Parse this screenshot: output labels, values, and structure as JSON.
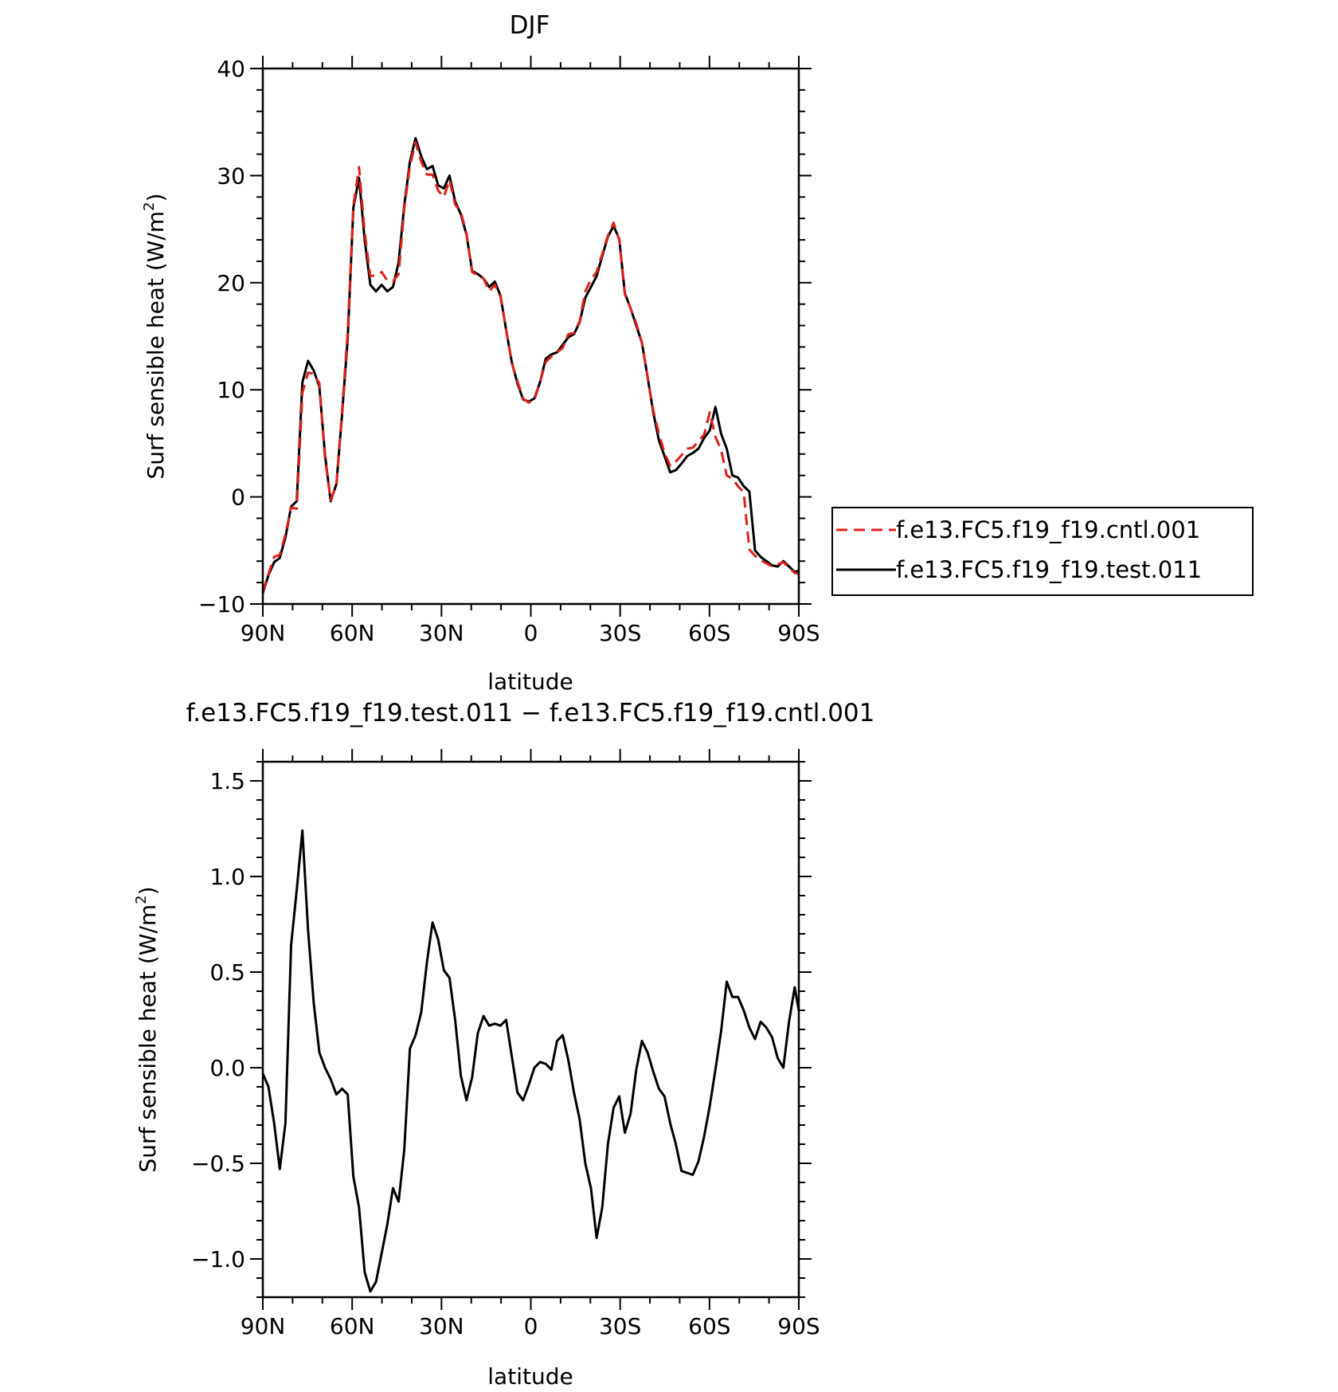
{
  "chart_data": [
    {
      "type": "line",
      "title": "DJF",
      "xlabel": "latitude",
      "ylabel": "Surf sensible heat (W/m",
      "ylabel_sup": "2",
      "ylabel_close": ")",
      "xlim": [
        90,
        -90
      ],
      "ylim": [
        -10,
        40
      ],
      "x_ticks": [
        90,
        60,
        30,
        0,
        -30,
        -60,
        -90
      ],
      "x_tick_labels": [
        "90N",
        "60N",
        "30N",
        "0",
        "30S",
        "60S",
        "90S"
      ],
      "y_ticks": [
        -10,
        0,
        10,
        20,
        30,
        40
      ],
      "y_tick_labels": [
        "−10",
        "0",
        "10",
        "20",
        "30",
        "40"
      ],
      "legend": "right",
      "series": [
        {
          "name": "f.e13.FC5.f19_f19.cntl.001",
          "color": "#e0201b",
          "dash": "dashed",
          "x": [
            90,
            88.1,
            86.2,
            84.3,
            82.4,
            80.5,
            78.6,
            76.7,
            74.8,
            72.9,
            71.0,
            69.1,
            67.2,
            65.3,
            63.4,
            61.5,
            59.6,
            57.7,
            55.8,
            53.9,
            52.0,
            50.1,
            48.2,
            46.3,
            44.4,
            42.5,
            40.6,
            38.7,
            36.8,
            34.9,
            33.0,
            31.1,
            29.2,
            27.3,
            25.4,
            23.5,
            21.6,
            19.7,
            17.8,
            15.9,
            14.0,
            12.1,
            10.2,
            8.3,
            6.4,
            4.5,
            2.6,
            0.7,
            -1.2,
            -3.1,
            -5.0,
            -6.9,
            -8.8,
            -10.7,
            -12.6,
            -14.5,
            -16.4,
            -18.3,
            -20.2,
            -22.1,
            -24.0,
            -25.9,
            -27.8,
            -29.7,
            -31.6,
            -33.5,
            -35.4,
            -37.3,
            -39.2,
            -41.1,
            -43.0,
            -44.9,
            -46.8,
            -48.7,
            -50.6,
            -52.5,
            -54.4,
            -56.3,
            -58.2,
            -60.1,
            -62.0,
            -63.9,
            -65.8,
            -67.7,
            -69.6,
            -71.5,
            -73.4,
            -75.3,
            -77.2,
            -79.1,
            -81.0,
            -82.9,
            -84.8,
            -86.7,
            -88.6,
            -90
          ],
          "y": [
            -8.9,
            -7.2,
            -5.6,
            -5.4,
            -3.5,
            -1.0,
            -1.1,
            9.7,
            11.6,
            11.5,
            10.6,
            3.6,
            -0.3,
            1.1,
            8.0,
            15.4,
            27.2,
            30.8,
            24.7,
            20.6,
            20.7,
            21.0,
            20.2,
            20.1,
            20.8,
            26.9,
            30.9,
            33.1,
            31.3,
            30.1,
            30.1,
            28.6,
            28.0,
            29.6,
            27.3,
            26.6,
            24.6,
            21.0,
            20.7,
            20.4,
            19.2,
            19.8,
            18.7,
            15.6,
            12.5,
            10.8,
            9.2,
            8.8,
            9.1,
            10.7,
            12.6,
            13.1,
            13.5,
            13.9,
            15.2,
            15.3,
            16.4,
            19.2,
            20.3,
            21.0,
            22.7,
            24.4,
            25.6,
            24.0,
            18.9,
            17.6,
            16.2,
            14.4,
            11.2,
            8.1,
            5.9,
            4.1,
            2.9,
            3.3,
            3.9,
            4.5,
            4.6,
            5.2,
            5.8,
            7.9,
            5.6,
            4.4,
            2.0,
            1.7,
            1.0,
            0.4,
            -4.9,
            -5.5,
            -5.9,
            -6.2,
            -6.5,
            -6.3,
            -6.1,
            -6.6,
            -7.1,
            -7.2
          ]
        },
        {
          "name": "f.e13.FC5.f19_f19.test.011",
          "color": "#000000",
          "dash": "solid",
          "x": [
            90,
            88.1,
            86.2,
            84.3,
            82.4,
            80.5,
            78.6,
            76.7,
            74.8,
            72.9,
            71.0,
            69.1,
            67.2,
            65.3,
            63.4,
            61.5,
            59.6,
            57.7,
            55.8,
            53.9,
            52.0,
            50.1,
            48.2,
            46.3,
            44.4,
            42.5,
            40.6,
            38.7,
            36.8,
            34.9,
            33.0,
            31.1,
            29.2,
            27.3,
            25.4,
            23.5,
            21.6,
            19.7,
            17.8,
            15.9,
            14.0,
            12.1,
            10.2,
            8.3,
            6.4,
            4.5,
            2.6,
            0.7,
            -1.2,
            -3.1,
            -5.0,
            -6.9,
            -8.8,
            -10.7,
            -12.6,
            -14.5,
            -16.4,
            -18.3,
            -20.2,
            -22.1,
            -24.0,
            -25.9,
            -27.8,
            -29.7,
            -31.6,
            -33.5,
            -35.4,
            -37.3,
            -39.2,
            -41.1,
            -43.0,
            -44.9,
            -46.8,
            -48.7,
            -50.6,
            -52.5,
            -54.4,
            -56.3,
            -58.2,
            -60.1,
            -62.0,
            -63.9,
            -65.8,
            -67.7,
            -69.6,
            -71.5,
            -73.4,
            -75.3,
            -77.2,
            -79.1,
            -81.0,
            -82.9,
            -84.8,
            -86.7,
            -88.6,
            -90
          ],
          "y": [
            -9.0,
            -7.3,
            -6.1,
            -5.7,
            -3.8,
            -0.9,
            -0.4,
            10.7,
            12.7,
            11.8,
            10.3,
            3.9,
            -0.4,
            1.2,
            7.7,
            14.8,
            27.0,
            29.8,
            24.0,
            19.8,
            19.2,
            19.8,
            19.2,
            19.6,
            21.9,
            27.2,
            31.3,
            33.5,
            31.8,
            30.6,
            30.9,
            29.1,
            28.8,
            30.0,
            27.6,
            26.4,
            24.5,
            21.1,
            20.8,
            20.4,
            19.6,
            20.1,
            18.8,
            15.6,
            12.6,
            10.6,
            9.1,
            8.9,
            9.2,
            10.7,
            12.9,
            13.3,
            13.5,
            14.2,
            14.9,
            15.2,
            16.3,
            18.6,
            19.6,
            20.6,
            22.5,
            24.3,
            25.3,
            24.1,
            19.0,
            17.6,
            16.0,
            14.4,
            11.2,
            7.9,
            5.3,
            3.8,
            2.3,
            2.5,
            3.1,
            3.8,
            4.1,
            4.5,
            5.5,
            6.2,
            8.4,
            5.9,
            4.5,
            2.0,
            1.8,
            1.0,
            0.5,
            -5.0,
            -5.6,
            -6.0,
            -6.4,
            -6.5,
            -6.0,
            -6.5,
            -7.0,
            -6.9
          ]
        }
      ]
    },
    {
      "type": "line",
      "title": "f.e13.FC5.f19_f19.test.011 − f.e13.FC5.f19_f19.cntl.001",
      "xlabel": "latitude",
      "ylabel": "Surf sensible heat (W/m",
      "ylabel_sup": "2",
      "ylabel_close": ")",
      "xlim": [
        90,
        -90
      ],
      "ylim": [
        -1.2,
        1.6
      ],
      "x_ticks": [
        90,
        60,
        30,
        0,
        -30,
        -60,
        -90
      ],
      "x_tick_labels": [
        "90N",
        "60N",
        "30N",
        "0",
        "30S",
        "60S",
        "90S"
      ],
      "y_ticks": [
        -1.0,
        -0.5,
        0.0,
        0.5,
        1.0,
        1.5
      ],
      "y_tick_labels": [
        "−1.0",
        "−0.5",
        "0.0",
        "0.5",
        "1.0",
        "1.5"
      ],
      "series": [
        {
          "color": "#000000",
          "dash": "solid",
          "x": [
            90,
            88.1,
            86.2,
            84.3,
            82.4,
            80.5,
            78.6,
            76.7,
            74.8,
            72.9,
            71.0,
            69.1,
            67.2,
            65.3,
            63.4,
            61.5,
            59.6,
            57.7,
            55.8,
            53.9,
            52.0,
            50.1,
            48.2,
            46.3,
            44.4,
            42.5,
            40.6,
            38.7,
            36.8,
            34.9,
            33.0,
            31.1,
            29.2,
            27.3,
            25.4,
            23.5,
            21.6,
            19.7,
            17.8,
            15.9,
            14.0,
            12.1,
            10.2,
            8.3,
            6.4,
            4.5,
            2.6,
            0.7,
            -1.2,
            -3.1,
            -5.0,
            -6.9,
            -8.8,
            -10.7,
            -12.6,
            -14.5,
            -16.4,
            -18.3,
            -20.2,
            -22.1,
            -24.0,
            -25.9,
            -27.8,
            -29.7,
            -31.6,
            -33.5,
            -35.4,
            -37.3,
            -39.2,
            -41.1,
            -43.0,
            -44.9,
            -46.8,
            -48.7,
            -50.6,
            -52.5,
            -54.4,
            -56.3,
            -58.2,
            -60.1,
            -62.0,
            -63.9,
            -65.8,
            -67.7,
            -69.6,
            -71.5,
            -73.4,
            -75.3,
            -77.2,
            -79.1,
            -81.0,
            -82.9,
            -84.8,
            -86.7,
            -88.6,
            -90
          ],
          "y": [
            -0.03,
            -0.1,
            -0.29,
            -0.53,
            -0.29,
            0.64,
            0.93,
            1.24,
            0.72,
            0.34,
            0.08,
            0.0,
            -0.06,
            -0.14,
            -0.11,
            -0.14,
            -0.57,
            -0.73,
            -1.07,
            -1.17,
            -1.12,
            -0.97,
            -0.82,
            -0.63,
            -0.7,
            -0.43,
            0.1,
            0.17,
            0.29,
            0.55,
            0.76,
            0.67,
            0.51,
            0.47,
            0.25,
            -0.04,
            -0.17,
            -0.05,
            0.18,
            0.27,
            0.22,
            0.23,
            0.22,
            0.25,
            0.06,
            -0.13,
            -0.17,
            -0.09,
            0.0,
            0.03,
            0.02,
            -0.01,
            0.14,
            0.17,
            0.04,
            -0.13,
            -0.27,
            -0.5,
            -0.63,
            -0.89,
            -0.73,
            -0.4,
            -0.21,
            -0.15,
            -0.34,
            -0.24,
            -0.01,
            0.14,
            0.08,
            -0.02,
            -0.11,
            -0.15,
            -0.29,
            -0.4,
            -0.54,
            -0.55,
            -0.56,
            -0.49,
            -0.36,
            -0.2,
            -0.01,
            0.19,
            0.45,
            0.37,
            0.37,
            0.3,
            0.21,
            0.15,
            0.24,
            0.21,
            0.16,
            0.05,
            0.0,
            0.24,
            0.42,
            0.3
          ]
        }
      ]
    }
  ]
}
